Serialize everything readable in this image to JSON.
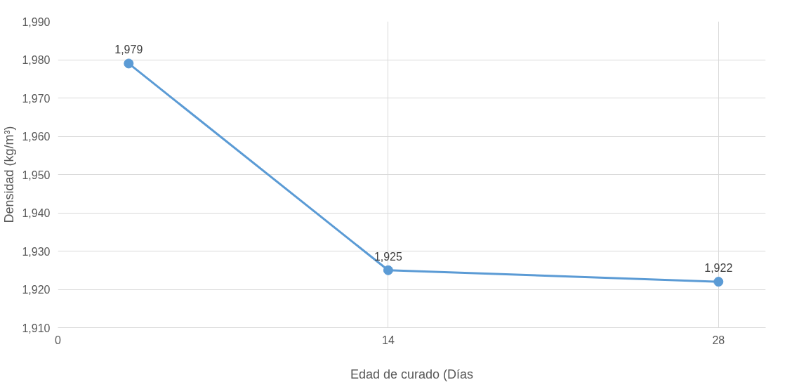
{
  "chart_data": {
    "type": "line",
    "xlabel": "Edad de curado (Días",
    "ylabel": "Densidad (kg/m³)",
    "x": [
      3,
      14,
      28
    ],
    "series": [
      {
        "color": "#5b9bd5",
        "values": [
          1979,
          1925,
          1922
        ],
        "value_labels": [
          "1,979",
          "1,925",
          "1,922"
        ]
      }
    ],
    "xlim": [
      0,
      30
    ],
    "xticks": [
      0,
      14,
      28
    ],
    "ylim": [
      1910,
      1990
    ],
    "yticks": [
      {
        "value": 1910,
        "label": "1,910"
      },
      {
        "value": 1920,
        "label": "1,920"
      },
      {
        "value": 1930,
        "label": "1,930"
      },
      {
        "value": 1940,
        "label": "1,940"
      },
      {
        "value": 1950,
        "label": "1,950"
      },
      {
        "value": 1960,
        "label": "1,960"
      },
      {
        "value": 1970,
        "label": "1,970"
      },
      {
        "value": 1980,
        "label": "1,980"
      },
      {
        "value": 1990,
        "label": "1,990"
      }
    ],
    "grid": true,
    "marker": "circle",
    "line_style": "solid"
  }
}
